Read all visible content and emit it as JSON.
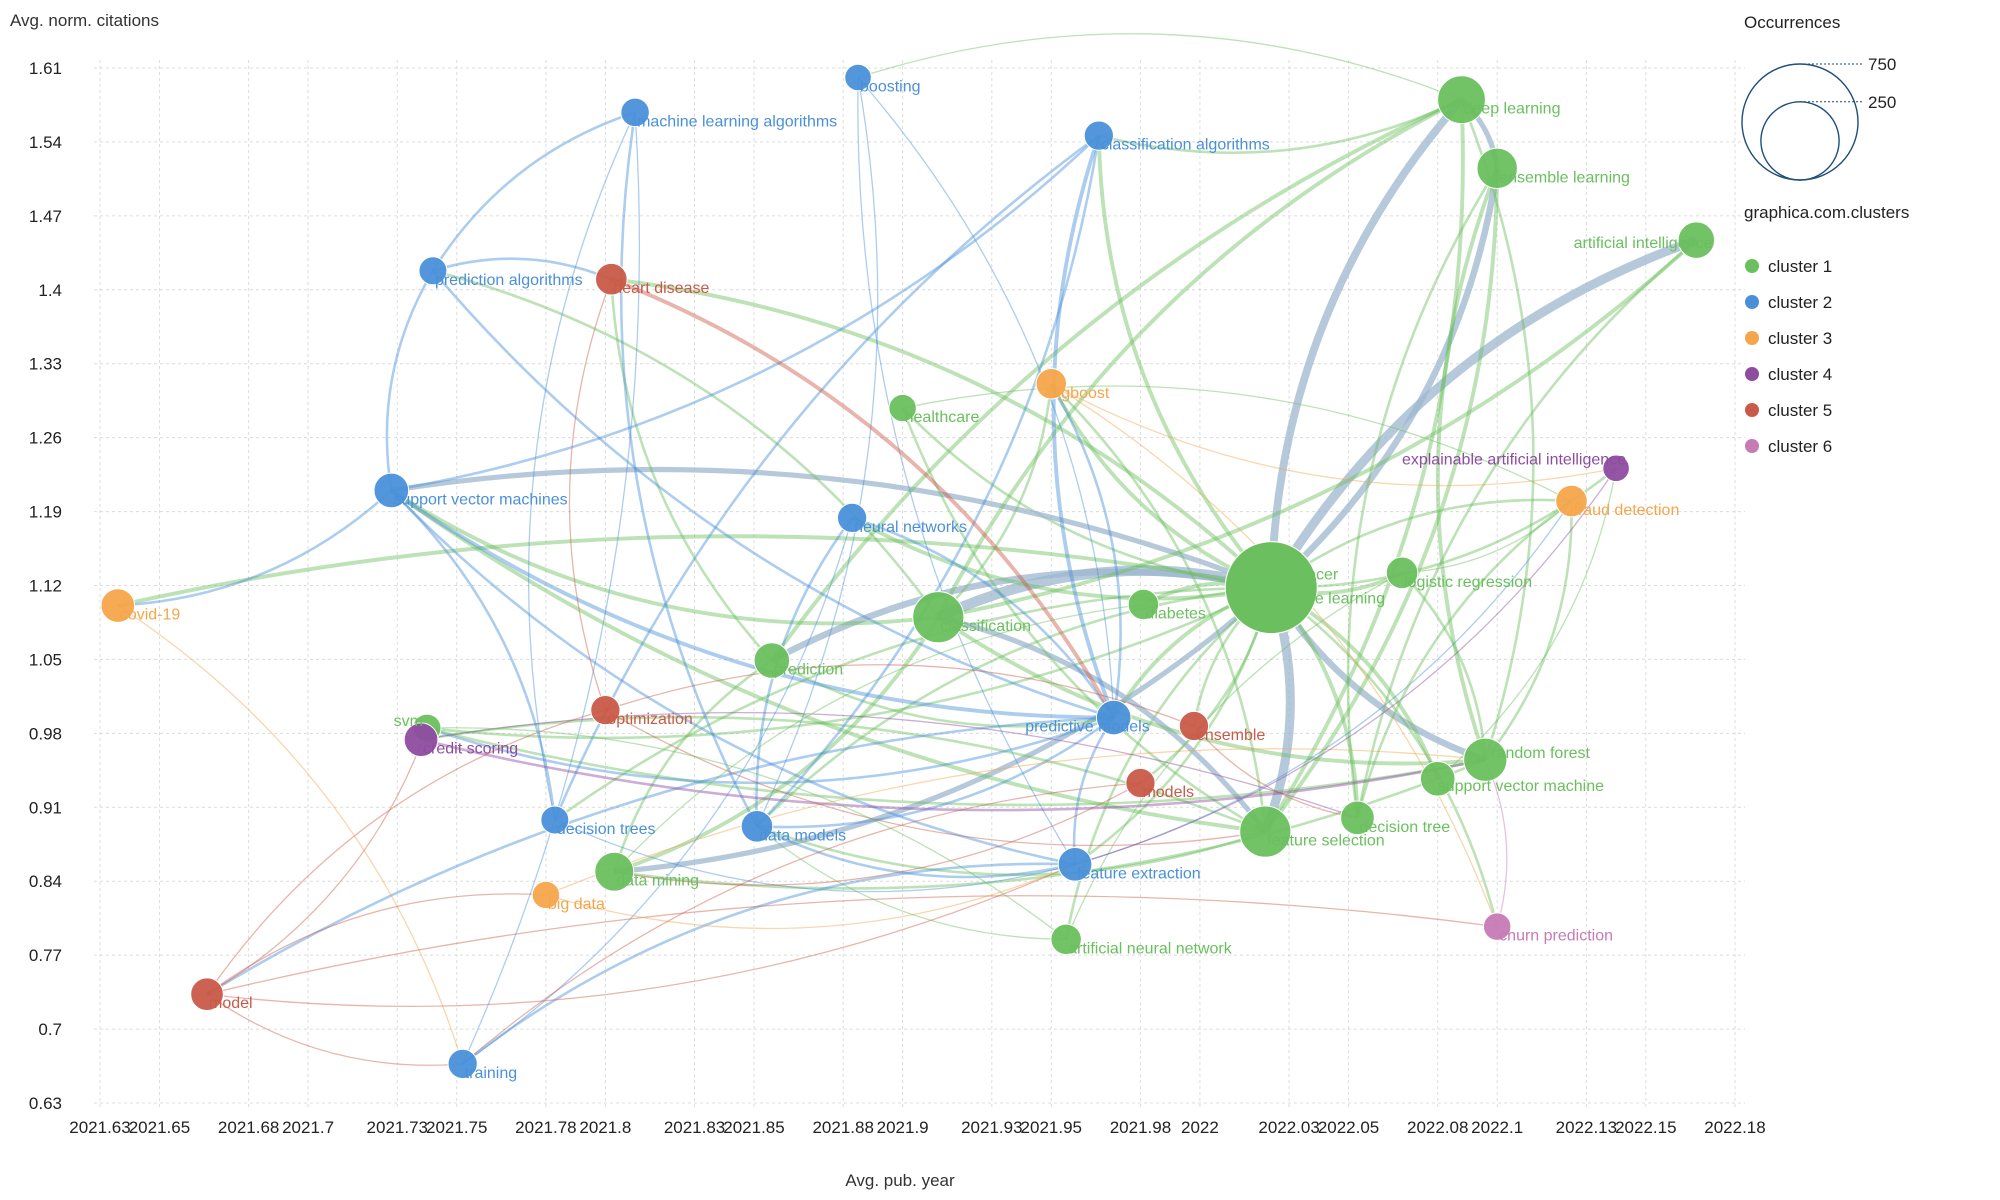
{
  "chart_data": {
    "type": "scatter",
    "xlabel": "Avg. pub. year",
    "ylabel": "Avg. norm. citations",
    "xlim": [
      2021.63,
      2022.18
    ],
    "ylim": [
      0.63,
      1.61
    ],
    "x_ticks": [
      "2021.63",
      "2021.65",
      "2021.68",
      "2021.7",
      "2021.73",
      "2021.75",
      "2021.78",
      "2021.8",
      "2021.83",
      "2021.85",
      "2021.88",
      "2021.9",
      "2021.93",
      "2021.95",
      "2021.98",
      "2022",
      "2022.03",
      "2022.05",
      "2022.08",
      "2022.1",
      "2022.13",
      "2022.15",
      "2022.18"
    ],
    "y_ticks": [
      "1.61",
      "1.54",
      "1.47",
      "1.4",
      "1.33",
      "1.26",
      "1.19",
      "1.12",
      "1.05",
      "0.98",
      "0.91",
      "0.84",
      "0.77",
      "0.7",
      "0.63"
    ],
    "grid": true,
    "legend_placement": "top-right",
    "size_legend": {
      "title": "Occurrences",
      "values": [
        750,
        250
      ]
    },
    "cluster_legend_title": "graphica.com.clusters",
    "clusters": [
      {
        "id": 1,
        "name": "cluster 1",
        "color": "#6abf5e"
      },
      {
        "id": 2,
        "name": "cluster 2",
        "color": "#4a90d9"
      },
      {
        "id": 3,
        "name": "cluster 3",
        "color": "#f5a54a"
      },
      {
        "id": 4,
        "name": "cluster 4",
        "color": "#8e4ca0"
      },
      {
        "id": 5,
        "name": "cluster 5",
        "color": "#c95a48"
      },
      {
        "id": 6,
        "name": "cluster 6",
        "color": "#c67bb5"
      }
    ],
    "nodes": [
      {
        "label": "breast cancer",
        "x": 2022.024,
        "y": 1.118,
        "occ": 750,
        "cluster": 1
      },
      {
        "label": "machine learning",
        "x": 2022.024,
        "y": 1.118,
        "occ": 750,
        "cluster": 1
      },
      {
        "label": "deep learning",
        "x": 2022.088,
        "y": 1.58,
        "occ": 150,
        "cluster": 1
      },
      {
        "label": "ensemble learning",
        "x": 2022.1,
        "y": 1.515,
        "occ": 95,
        "cluster": 1
      },
      {
        "label": "artificial intelligence",
        "x": 2022.167,
        "y": 1.447,
        "occ": 70,
        "cluster": 1
      },
      {
        "label": "classification",
        "x": 2021.912,
        "y": 1.09,
        "occ": 180,
        "cluster": 1
      },
      {
        "label": "feature selection",
        "x": 2022.022,
        "y": 0.887,
        "occ": 180,
        "cluster": 1
      },
      {
        "label": "random forest",
        "x": 2022.096,
        "y": 0.955,
        "occ": 115,
        "cluster": 1
      },
      {
        "label": "support vector machine",
        "x": 2022.08,
        "y": 0.937,
        "occ": 60,
        "cluster": 1
      },
      {
        "label": "logistic regression",
        "x": 2022.068,
        "y": 1.132,
        "occ": 45,
        "cluster": 1
      },
      {
        "label": "decision tree",
        "x": 2022.053,
        "y": 0.9,
        "occ": 55,
        "cluster": 1
      },
      {
        "label": "prediction",
        "x": 2021.856,
        "y": 1.049,
        "occ": 65,
        "cluster": 1
      },
      {
        "label": "data mining",
        "x": 2021.803,
        "y": 0.849,
        "occ": 85,
        "cluster": 1
      },
      {
        "label": "diabetes",
        "x": 2021.981,
        "y": 1.102,
        "occ": 40,
        "cluster": 1
      },
      {
        "label": "healthcare",
        "x": 2021.9,
        "y": 1.288,
        "occ": 28,
        "cluster": 1
      },
      {
        "label": "artificial neural network",
        "x": 2021.955,
        "y": 0.785,
        "occ": 40,
        "cluster": 1
      },
      {
        "label": "svm",
        "x": 2021.74,
        "y": 0.985,
        "occ": 30,
        "cluster": 1
      },
      {
        "label": "boosting",
        "x": 2021.885,
        "y": 1.601,
        "occ": 25,
        "cluster": 2
      },
      {
        "label": "machine learning algorithms",
        "x": 2021.81,
        "y": 1.568,
        "occ": 32,
        "cluster": 2
      },
      {
        "label": "classification algorithms",
        "x": 2021.966,
        "y": 1.546,
        "occ": 35,
        "cluster": 2
      },
      {
        "label": "prediction algorithms",
        "x": 2021.742,
        "y": 1.418,
        "occ": 30,
        "cluster": 2
      },
      {
        "label": "support vector machines",
        "x": 2021.728,
        "y": 1.21,
        "occ": 60,
        "cluster": 2
      },
      {
        "label": "neural networks",
        "x": 2021.883,
        "y": 1.184,
        "occ": 35,
        "cluster": 2
      },
      {
        "label": "predictive models",
        "x": 2021.971,
        "y": 0.995,
        "occ": 60,
        "cluster": 2
      },
      {
        "label": "decision trees",
        "x": 2021.783,
        "y": 0.898,
        "occ": 30,
        "cluster": 2
      },
      {
        "label": "data models",
        "x": 2021.851,
        "y": 0.892,
        "occ": 45,
        "cluster": 2
      },
      {
        "label": "feature extraction",
        "x": 2021.958,
        "y": 0.856,
        "occ": 55,
        "cluster": 2
      },
      {
        "label": "training",
        "x": 2021.752,
        "y": 0.667,
        "occ": 35,
        "cluster": 2
      },
      {
        "label": "xgboost",
        "x": 2021.95,
        "y": 1.311,
        "occ": 40,
        "cluster": 3
      },
      {
        "label": "fraud detection",
        "x": 2022.125,
        "y": 1.2,
        "occ": 45,
        "cluster": 3
      },
      {
        "label": "covid-19",
        "x": 2021.636,
        "y": 1.101,
        "occ": 55,
        "cluster": 3
      },
      {
        "label": "big data",
        "x": 2021.78,
        "y": 0.827,
        "occ": 28,
        "cluster": 3
      },
      {
        "label": "explainable artificial intelligence",
        "x": 2022.14,
        "y": 1.231,
        "occ": 25,
        "cluster": 4
      },
      {
        "label": "credit scoring",
        "x": 2021.738,
        "y": 0.974,
        "occ": 55,
        "cluster": 4
      },
      {
        "label": "heart disease",
        "x": 2021.802,
        "y": 1.41,
        "occ": 45,
        "cluster": 5
      },
      {
        "label": "optimization",
        "x": 2021.8,
        "y": 1.002,
        "occ": 35,
        "cluster": 5
      },
      {
        "label": "ensemble",
        "x": 2021.998,
        "y": 0.987,
        "occ": 35,
        "cluster": 5
      },
      {
        "label": "models",
        "x": 2021.98,
        "y": 0.933,
        "occ": 35,
        "cluster": 5
      },
      {
        "label": "model",
        "x": 2021.666,
        "y": 0.733,
        "occ": 50,
        "cluster": 5
      },
      {
        "label": "churn prediction",
        "x": 2022.1,
        "y": 0.797,
        "occ": 28,
        "cluster": 6
      }
    ],
    "edges": [
      [
        "breast cancer",
        "deep learning",
        6
      ],
      [
        "breast cancer",
        "ensemble learning",
        5
      ],
      [
        "breast cancer",
        "artificial intelligence",
        7
      ],
      [
        "breast cancer",
        "classification",
        8
      ],
      [
        "breast cancer",
        "feature selection",
        7
      ],
      [
        "breast cancer",
        "random forest",
        5
      ],
      [
        "breast cancer",
        "support vector machine",
        3
      ],
      [
        "breast cancer",
        "logistic regression",
        3
      ],
      [
        "breast cancer",
        "decision tree",
        3
      ],
      [
        "breast cancer",
        "prediction",
        5
      ],
      [
        "breast cancer",
        "data mining",
        4
      ],
      [
        "breast cancer",
        "diabetes",
        3
      ],
      [
        "breast cancer",
        "healthcare",
        2
      ],
      [
        "breast cancer",
        "artificial neural network",
        2
      ],
      [
        "breast cancer",
        "svm",
        2
      ],
      [
        "breast cancer",
        "support vector machines",
        4
      ],
      [
        "breast cancer",
        "neural networks",
        3
      ],
      [
        "breast cancer",
        "predictive models",
        3
      ],
      [
        "breast cancer",
        "classification algorithms",
        3
      ],
      [
        "breast cancer",
        "heart disease",
        3
      ],
      [
        "breast cancer",
        "xgboost",
        3
      ],
      [
        "breast cancer",
        "covid-19",
        3
      ],
      [
        "breast cancer",
        "fraud detection",
        2
      ],
      [
        "breast cancer",
        "explainable artificial intelligence",
        2
      ],
      [
        "breast cancer",
        "churn prediction",
        2
      ],
      [
        "breast cancer",
        "data models",
        2
      ],
      [
        "breast cancer",
        "feature extraction",
        2
      ],
      [
        "breast cancer",
        "ensemble",
        2
      ],
      [
        "breast cancer",
        "models",
        2
      ],
      [
        "breast cancer",
        "decision trees",
        2
      ],
      [
        "deep learning",
        "ensemble learning",
        4
      ],
      [
        "deep learning",
        "classification",
        3
      ],
      [
        "deep learning",
        "feature selection",
        3
      ],
      [
        "deep learning",
        "boosting",
        1
      ],
      [
        "deep learning",
        "classification algorithms",
        2
      ],
      [
        "deep learning",
        "prediction",
        3
      ],
      [
        "deep learning",
        "random forest",
        2
      ],
      [
        "ensemble learning",
        "random forest",
        3
      ],
      [
        "ensemble learning",
        "feature selection",
        3
      ],
      [
        "ensemble learning",
        "decision tree",
        2
      ],
      [
        "artificial intelligence",
        "classification",
        3
      ],
      [
        "artificial intelligence",
        "decision tree",
        2
      ],
      [
        "classification",
        "feature selection",
        4
      ],
      [
        "classification",
        "random forest",
        3
      ],
      [
        "classification",
        "support vector machines",
        3
      ],
      [
        "classification",
        "prediction algorithms",
        2
      ],
      [
        "classification",
        "data mining",
        3
      ],
      [
        "classification",
        "xgboost",
        2
      ],
      [
        "feature selection",
        "data models",
        2
      ],
      [
        "feature selection",
        "xgboost",
        2
      ],
      [
        "feature selection",
        "support vector machines",
        3
      ],
      [
        "feature selection",
        "credit scoring",
        2
      ],
      [
        "feature selection",
        "healthcare",
        2
      ],
      [
        "random forest",
        "logistic regression",
        2
      ],
      [
        "random forest",
        "svm",
        2
      ],
      [
        "random forest",
        "fraud detection",
        2
      ],
      [
        "random forest",
        "data mining",
        2
      ],
      [
        "prediction",
        "data mining",
        2
      ],
      [
        "prediction",
        "heart disease",
        2
      ],
      [
        "prediction",
        "predictive models",
        2
      ],
      [
        "support vector machines",
        "covid-19",
        2
      ],
      [
        "support vector machines",
        "predictive models",
        3
      ],
      [
        "support vector machines",
        "prediction algorithms",
        2
      ],
      [
        "support vector machines",
        "classification algorithms",
        2
      ],
      [
        "support vector machines",
        "decision trees",
        2
      ],
      [
        "support vector machines",
        "feature extraction",
        2
      ],
      [
        "prediction algorithms",
        "heart disease",
        2
      ],
      [
        "prediction algorithms",
        "predictive models",
        2
      ],
      [
        "prediction algorithms",
        "machine learning algorithms",
        2
      ],
      [
        "machine learning algorithms",
        "data models",
        2
      ],
      [
        "machine learning algorithms",
        "training",
        1
      ],
      [
        "machine learning algorithms",
        "decision trees",
        1
      ],
      [
        "boosting",
        "data models",
        1
      ],
      [
        "boosting",
        "feature extraction",
        1
      ],
      [
        "boosting",
        "predictive models",
        1
      ],
      [
        "classification algorithms",
        "predictive models",
        3
      ],
      [
        "classification algorithms",
        "data models",
        2
      ],
      [
        "classification algorithms",
        "decision trees",
        2
      ],
      [
        "neural networks",
        "predictive models",
        2
      ],
      [
        "neural networks",
        "data models",
        2
      ],
      [
        "neural networks",
        "training",
        1
      ],
      [
        "predictive models",
        "feature extraction",
        2
      ],
      [
        "predictive models",
        "data models",
        2
      ],
      [
        "predictive models",
        "model",
        2
      ],
      [
        "predictive models",
        "svm",
        2
      ],
      [
        "predictive models",
        "xgboost",
        2
      ],
      [
        "feature extraction",
        "data models",
        2
      ],
      [
        "feature extraction",
        "training",
        2
      ],
      [
        "feature extraction",
        "decision trees",
        1
      ],
      [
        "feature extraction",
        "fraud detection",
        1
      ],
      [
        "heart disease",
        "predictive models",
        3
      ],
      [
        "heart disease",
        "optimization",
        1
      ],
      [
        "xgboost",
        "churn prediction",
        1
      ],
      [
        "xgboost",
        "explainable artificial intelligence",
        1
      ],
      [
        "covid-19",
        "training",
        1
      ],
      [
        "model",
        "svm",
        1
      ],
      [
        "model",
        "churn prediction",
        1
      ],
      [
        "model",
        "feature extraction",
        1
      ],
      [
        "model",
        "optimization",
        1
      ],
      [
        "model",
        "training",
        1
      ],
      [
        "model",
        "big data",
        1
      ],
      [
        "optimization",
        "feature selection",
        1
      ],
      [
        "optimization",
        "ensemble",
        1
      ],
      [
        "big data",
        "feature extraction",
        1
      ],
      [
        "big data",
        "random forest",
        1
      ],
      [
        "credit scoring",
        "random forest",
        2
      ],
      [
        "credit scoring",
        "decision tree",
        1
      ],
      [
        "ensemble",
        "decision tree",
        1
      ],
      [
        "models",
        "data mining",
        1
      ],
      [
        "models",
        "training",
        1
      ],
      [
        "artificial neural network",
        "data models",
        1
      ],
      [
        "artificial neural network",
        "svm",
        1
      ],
      [
        "artificial neural network",
        "logistic regression",
        1
      ],
      [
        "diabetes",
        "data mining",
        1
      ],
      [
        "healthcare",
        "fraud detection",
        1
      ],
      [
        "logistic regression",
        "fraud detection",
        1
      ],
      [
        "explainable artificial intelligence",
        "feature extraction",
        1
      ],
      [
        "churn prediction",
        "random forest",
        1
      ],
      [
        "decision tree",
        "fraud detection",
        2
      ],
      [
        "support vector machine",
        "explainable artificial intelligence",
        1
      ]
    ]
  }
}
